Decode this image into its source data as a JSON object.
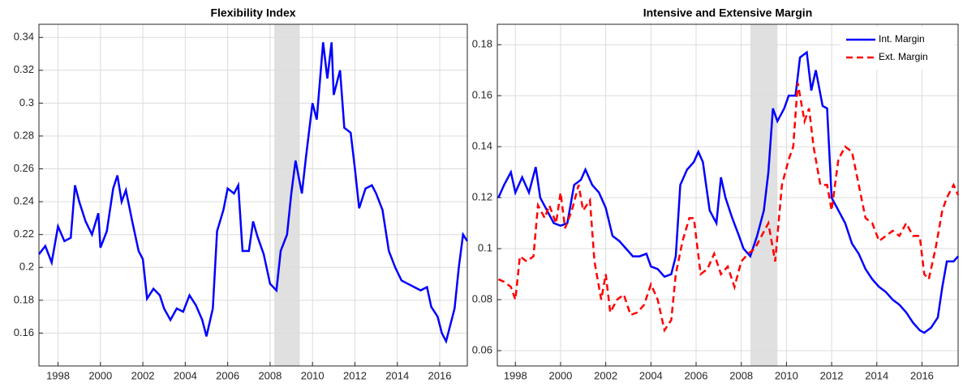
{
  "chart_data": [
    {
      "type": "line",
      "title": "Flexibility Index",
      "xlim": [
        1997.1,
        2017.3
      ],
      "xticks": [
        1998,
        2000,
        2002,
        2004,
        2006,
        2008,
        2010,
        2012,
        2014,
        2016
      ],
      "ylim": [
        0.14,
        0.348
      ],
      "yticks": [
        0.16,
        0.18,
        0.2,
        0.22,
        0.24,
        0.26,
        0.28,
        0.3,
        0.32,
        0.34
      ],
      "grid": true,
      "shaded_region": [
        2008.2,
        2009.4
      ],
      "series": [
        {
          "color": "#0000ff",
          "dash": "solid",
          "x": [
            1997.1,
            1997.4,
            1997.7,
            1998.0,
            1998.3,
            1998.6,
            1998.8,
            1999.0,
            1999.3,
            1999.6,
            1999.9,
            2000.0,
            2000.3,
            2000.6,
            2000.8,
            2001.0,
            2001.2,
            2001.5,
            2001.8,
            2002.0,
            2002.2,
            2002.5,
            2002.8,
            2003.0,
            2003.3,
            2003.6,
            2003.9,
            2004.2,
            2004.5,
            2004.8,
            2005.0,
            2005.3,
            2005.5,
            2005.8,
            2006.0,
            2006.3,
            2006.5,
            2006.7,
            2007.0,
            2007.2,
            2007.4,
            2007.7,
            2008.0,
            2008.3,
            2008.5,
            2008.8,
            2009.0,
            2009.2,
            2009.5,
            2009.7,
            2010.0,
            2010.2,
            2010.5,
            2010.7,
            2010.9,
            2011.0,
            2011.3,
            2011.5,
            2011.8,
            2012.0,
            2012.2,
            2012.5,
            2012.8,
            2013.0,
            2013.3,
            2013.6,
            2013.9,
            2014.2,
            2014.5,
            2014.8,
            2015.1,
            2015.4,
            2015.6,
            2015.9,
            2016.1,
            2016.3,
            2016.5,
            2016.7,
            2016.9,
            2017.1,
            2017.3
          ],
          "values": [
            0.208,
            0.213,
            0.203,
            0.225,
            0.216,
            0.218,
            0.25,
            0.24,
            0.228,
            0.22,
            0.233,
            0.212,
            0.222,
            0.248,
            0.256,
            0.24,
            0.247,
            0.228,
            0.21,
            0.205,
            0.181,
            0.187,
            0.183,
            0.175,
            0.168,
            0.175,
            0.173,
            0.183,
            0.177,
            0.168,
            0.158,
            0.175,
            0.222,
            0.235,
            0.248,
            0.245,
            0.25,
            0.21,
            0.21,
            0.228,
            0.219,
            0.208,
            0.19,
            0.186,
            0.21,
            0.22,
            0.245,
            0.265,
            0.245,
            0.268,
            0.3,
            0.29,
            0.337,
            0.315,
            0.337,
            0.305,
            0.32,
            0.285,
            0.282,
            0.26,
            0.236,
            0.248,
            0.25,
            0.245,
            0.235,
            0.21,
            0.2,
            0.192,
            0.19,
            0.188,
            0.186,
            0.188,
            0.176,
            0.17,
            0.16,
            0.155,
            0.165,
            0.175,
            0.2,
            0.22,
            0.216
          ]
        }
      ]
    },
    {
      "type": "line",
      "title": "Intensive and Extensive Margin",
      "xlim": [
        1997.2,
        2017.6
      ],
      "xticks": [
        1998,
        2000,
        2002,
        2004,
        2006,
        2008,
        2010,
        2012,
        2014,
        2016
      ],
      "ylim": [
        0.054,
        0.188
      ],
      "yticks": [
        0.06,
        0.08,
        0.1,
        0.12,
        0.14,
        0.16,
        0.18
      ],
      "grid": true,
      "shaded_region": [
        2008.4,
        2009.6
      ],
      "legend": "northeast",
      "series": [
        {
          "name": "Int. Margin",
          "color": "#0000ff",
          "dash": "solid",
          "x": [
            1997.25,
            1997.5,
            1997.8,
            1998.0,
            1998.3,
            1998.6,
            1998.9,
            1999.1,
            1999.4,
            1999.7,
            2000.0,
            2000.3,
            2000.6,
            2000.9,
            2001.1,
            2001.4,
            2001.7,
            2002.0,
            2002.3,
            2002.6,
            2002.9,
            2003.2,
            2003.5,
            2003.8,
            2004.0,
            2004.3,
            2004.6,
            2004.9,
            2005.1,
            2005.3,
            2005.6,
            2005.9,
            2006.1,
            2006.3,
            2006.6,
            2006.9,
            2007.1,
            2007.3,
            2007.6,
            2007.9,
            2008.1,
            2008.4,
            2008.7,
            2009.0,
            2009.2,
            2009.4,
            2009.6,
            2009.9,
            2010.1,
            2010.4,
            2010.6,
            2010.9,
            2011.1,
            2011.3,
            2011.6,
            2011.8,
            2012.0,
            2012.3,
            2012.6,
            2012.9,
            2013.2,
            2013.5,
            2013.8,
            2014.1,
            2014.4,
            2014.7,
            2015.0,
            2015.3,
            2015.6,
            2015.9,
            2016.1,
            2016.4,
            2016.7,
            2016.9,
            2017.1,
            2017.4,
            2017.6
          ],
          "values": [
            0.12,
            0.125,
            0.13,
            0.122,
            0.128,
            0.122,
            0.132,
            0.12,
            0.115,
            0.11,
            0.109,
            0.11,
            0.125,
            0.127,
            0.131,
            0.125,
            0.122,
            0.116,
            0.105,
            0.103,
            0.1,
            0.097,
            0.097,
            0.098,
            0.093,
            0.092,
            0.089,
            0.09,
            0.097,
            0.125,
            0.131,
            0.134,
            0.138,
            0.134,
            0.115,
            0.11,
            0.128,
            0.12,
            0.112,
            0.105,
            0.1,
            0.097,
            0.105,
            0.115,
            0.13,
            0.155,
            0.15,
            0.155,
            0.16,
            0.16,
            0.175,
            0.177,
            0.162,
            0.17,
            0.156,
            0.155,
            0.12,
            0.115,
            0.11,
            0.102,
            0.098,
            0.092,
            0.088,
            0.085,
            0.083,
            0.08,
            0.078,
            0.075,
            0.071,
            0.068,
            0.067,
            0.069,
            0.073,
            0.085,
            0.095,
            0.095,
            0.097
          ]
        },
        {
          "name": "Ext. Margin",
          "color": "#ff0000",
          "dash": "dashed",
          "x": [
            1997.25,
            1997.5,
            1997.8,
            1998.0,
            1998.2,
            1998.5,
            1998.8,
            1999.0,
            1999.3,
            1999.5,
            1999.8,
            2000.0,
            2000.2,
            2000.5,
            2000.8,
            2001.0,
            2001.3,
            2001.5,
            2001.8,
            2002.0,
            2002.2,
            2002.5,
            2002.8,
            2003.1,
            2003.4,
            2003.7,
            2004.0,
            2004.3,
            2004.6,
            2004.9,
            2005.1,
            2005.4,
            2005.7,
            2005.9,
            2006.2,
            2006.5,
            2006.8,
            2007.1,
            2007.4,
            2007.7,
            2008.0,
            2008.3,
            2008.6,
            2008.9,
            2009.2,
            2009.5,
            2009.8,
            2010.1,
            2010.3,
            2010.5,
            2010.8,
            2011.0,
            2011.2,
            2011.5,
            2011.8,
            2012.0,
            2012.3,
            2012.6,
            2012.9,
            2013.2,
            2013.5,
            2013.8,
            2014.1,
            2014.4,
            2014.7,
            2015.0,
            2015.3,
            2015.6,
            2015.9,
            2016.1,
            2016.3,
            2016.6,
            2016.9,
            2017.1,
            2017.4,
            2017.6
          ],
          "values": [
            0.088,
            0.087,
            0.085,
            0.08,
            0.097,
            0.095,
            0.097,
            0.117,
            0.112,
            0.117,
            0.11,
            0.122,
            0.108,
            0.115,
            0.125,
            0.115,
            0.119,
            0.095,
            0.08,
            0.09,
            0.075,
            0.08,
            0.082,
            0.074,
            0.075,
            0.078,
            0.086,
            0.08,
            0.068,
            0.072,
            0.09,
            0.103,
            0.112,
            0.112,
            0.09,
            0.092,
            0.098,
            0.09,
            0.093,
            0.085,
            0.095,
            0.098,
            0.1,
            0.105,
            0.11,
            0.095,
            0.125,
            0.135,
            0.14,
            0.165,
            0.15,
            0.155,
            0.14,
            0.125,
            0.125,
            0.115,
            0.135,
            0.14,
            0.138,
            0.125,
            0.112,
            0.11,
            0.103,
            0.105,
            0.107,
            0.105,
            0.11,
            0.105,
            0.105,
            0.09,
            0.088,
            0.1,
            0.115,
            0.12,
            0.125,
            0.121
          ]
        }
      ]
    }
  ]
}
